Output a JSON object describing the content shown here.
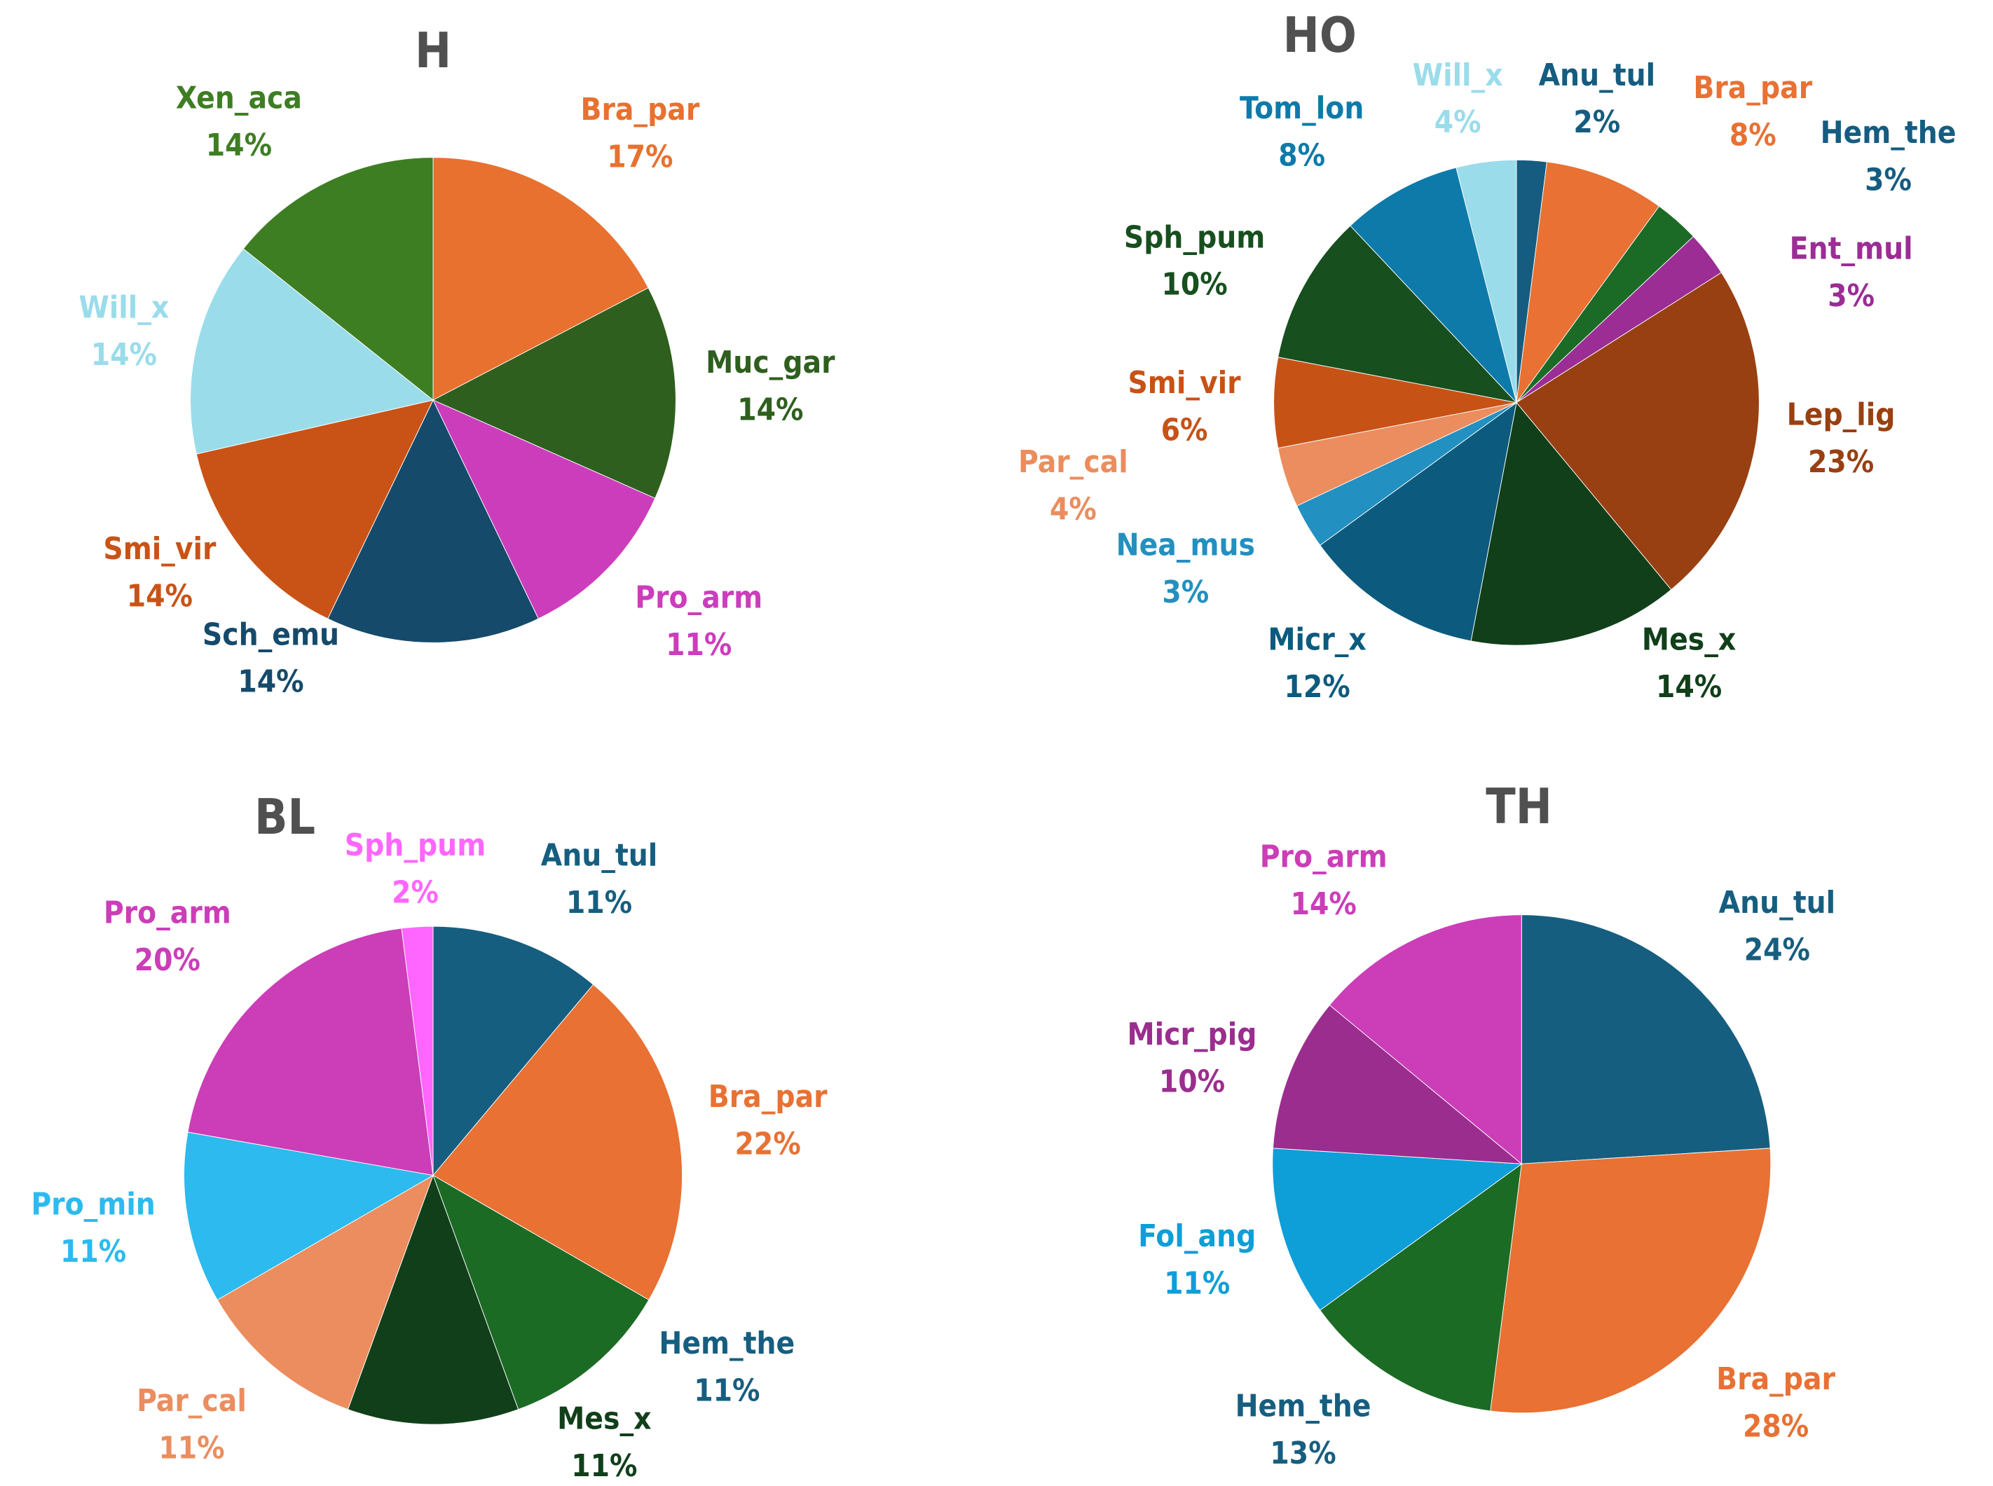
{
  "chart_data": [
    {
      "type": "pie",
      "title": "H",
      "slices": [
        {
          "label": "Bra_par",
          "value": 17,
          "pct": "17%",
          "color": "#E8712F",
          "label_color": "#E8712F"
        },
        {
          "label": "Muc_gar",
          "value": 14,
          "pct": "14%",
          "color": "#2E5F1E",
          "label_color": "#2E5F1E"
        },
        {
          "label": "Pro_arm",
          "value": 11,
          "pct": "11%",
          "color": "#CC3DBB",
          "label_color": "#CC3DBB"
        },
        {
          "label": "Sch_emu",
          "value": 14,
          "pct": "14%",
          "color": "#154A6B",
          "label_color": "#154A6B"
        },
        {
          "label": "Smi_vir",
          "value": 14,
          "pct": "14%",
          "color": "#C95316",
          "label_color": "#C95316"
        },
        {
          "label": "Will_x",
          "value": 14,
          "pct": "14%",
          "color": "#9ADCEA",
          "label_color": "#9ADCEA"
        },
        {
          "label": "Xen_aca",
          "value": 14,
          "pct": "14%",
          "color": "#3E7E23",
          "label_color": "#3E7E23"
        }
      ]
    },
    {
      "type": "pie",
      "title": "HO",
      "slices": [
        {
          "label": "Anu_tul",
          "value": 2,
          "pct": "2%",
          "color": "#155C80",
          "label_color": "#155C80"
        },
        {
          "label": "Bra_par",
          "value": 8,
          "pct": "8%",
          "color": "#E87133",
          "label_color": "#E87133"
        },
        {
          "label": "Hem_the",
          "value": 3,
          "pct": "3%",
          "color": "#1B6B26",
          "label_color": "#155C80"
        },
        {
          "label": "Ent_mul",
          "value": 3,
          "pct": "3%",
          "color": "#9B2D95",
          "label_color": "#9B2D95"
        },
        {
          "label": "Lep_lig",
          "value": 23,
          "pct": "23%",
          "color": "#984012",
          "label_color": "#984012"
        },
        {
          "label": "Mes_x",
          "value": 14,
          "pct": "14%",
          "color": "#113F1A",
          "label_color": "#113F1A"
        },
        {
          "label": "Micr_x",
          "value": 12,
          "pct": "12%",
          "color": "#0C5B7E",
          "label_color": "#0C5B7E"
        },
        {
          "label": "Nea_mus",
          "value": 3,
          "pct": "3%",
          "color": "#2290C0",
          "label_color": "#2290C0"
        },
        {
          "label": "Par_cal",
          "value": 4,
          "pct": "4%",
          "color": "#EB8D5E",
          "label_color": "#EB8D5E"
        },
        {
          "label": "Smi_vir",
          "value": 6,
          "pct": "6%",
          "color": "#C75216",
          "label_color": "#C75216"
        },
        {
          "label": "Sph_pum",
          "value": 10,
          "pct": "10%",
          "color": "#174F1F",
          "label_color": "#174F1F"
        },
        {
          "label": "Tom_lon",
          "value": 8,
          "pct": "8%",
          "color": "#0E7AAA",
          "label_color": "#0E7AAA"
        },
        {
          "label": "Will_x",
          "value": 4,
          "pct": "4%",
          "color": "#9ADCEA",
          "label_color": "#9ADCEA"
        }
      ]
    },
    {
      "type": "pie",
      "title": "BL",
      "slices": [
        {
          "label": "Anu_tul",
          "value": 11,
          "pct": "11%",
          "color": "#165E80",
          "label_color": "#165E80"
        },
        {
          "label": "Bra_par",
          "value": 22,
          "pct": "22%",
          "color": "#E87133",
          "label_color": "#E87133"
        },
        {
          "label": "Hem_the",
          "value": 11,
          "pct": "11%",
          "color": "#1C6B25",
          "label_color": "#165E80"
        },
        {
          "label": "Mes_x",
          "value": 11,
          "pct": "11%",
          "color": "#113F1A",
          "label_color": "#113F1A"
        },
        {
          "label": "Par_cal",
          "value": 11,
          "pct": "11%",
          "color": "#EB8D5E",
          "label_color": "#EB8D5E"
        },
        {
          "label": "Pro_min",
          "value": 11,
          "pct": "11%",
          "color": "#2DBAEE",
          "label_color": "#2DBAEE"
        },
        {
          "label": "Pro_arm",
          "value": 20,
          "pct": "20%",
          "color": "#CC3DB8",
          "label_color": "#CC3DB8"
        },
        {
          "label": "Sph_pum",
          "value": 2,
          "pct": "2%",
          "color": "#FF66FF",
          "label_color": "#FF66FF"
        }
      ]
    },
    {
      "type": "pie",
      "title": "TH",
      "slices": [
        {
          "label": "Anu_tul",
          "value": 24,
          "pct": "24%",
          "color": "#165E80",
          "label_color": "#165E80"
        },
        {
          "label": "Bra_par",
          "value": 28,
          "pct": "28%",
          "color": "#E87133",
          "label_color": "#E87133"
        },
        {
          "label": "Hem_the",
          "value": 13,
          "pct": "13%",
          "color": "#1C6B25",
          "label_color": "#165E80"
        },
        {
          "label": "Fol_ang",
          "value": 11,
          "pct": "11%",
          "color": "#0E9ED8",
          "label_color": "#0E9ED8"
        },
        {
          "label": "Micr_pig",
          "value": 10,
          "pct": "10%",
          "color": "#9B2D8F",
          "label_color": "#9B2D8F"
        },
        {
          "label": "Pro_arm",
          "value": 14,
          "pct": "14%",
          "color": "#CC3DB8",
          "label_color": "#CC3DB8"
        }
      ]
    }
  ]
}
